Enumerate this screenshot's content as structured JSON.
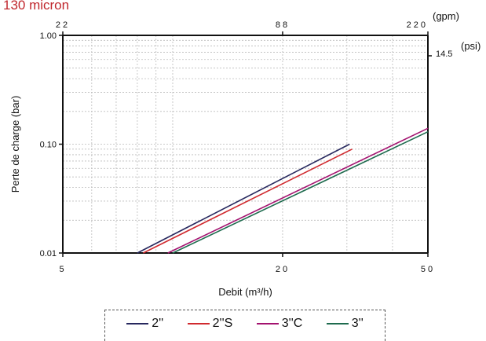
{
  "chart_data": {
    "type": "line",
    "title": "130 micron",
    "xlabel": "Debit (m³/h)",
    "ylabel": "Perte de charge  (bar)",
    "x_scale": "log",
    "y_scale": "log",
    "xlim": [
      5,
      50
    ],
    "ylim": [
      0.01,
      1.0
    ],
    "x_ticks": [
      "5",
      "20",
      "50"
    ],
    "y_ticks": [
      "0.01",
      "0.10",
      "1.00"
    ],
    "top_axis": {
      "unit": "(gpm)",
      "ticks": [
        "22",
        "88",
        "220"
      ]
    },
    "right_axis": {
      "unit": "(psi)",
      "ticks": [
        "14.5"
      ]
    },
    "grid": true,
    "legend_position": "bottom",
    "series": [
      {
        "name": "2''",
        "color": "#27285e",
        "x": [
          8.0,
          30.5
        ],
        "y": [
          0.01,
          0.1
        ]
      },
      {
        "name": "2''S",
        "color": "#d02a2f",
        "x": [
          8.3,
          31.0
        ],
        "y": [
          0.01,
          0.09
        ]
      },
      {
        "name": "3''C",
        "color": "#a3126f",
        "x": [
          9.7,
          50.0
        ],
        "y": [
          0.01,
          0.14
        ]
      },
      {
        "name": "3''",
        "color": "#1e6b4e",
        "x": [
          10.0,
          50.0
        ],
        "y": [
          0.01,
          0.13
        ]
      }
    ]
  }
}
